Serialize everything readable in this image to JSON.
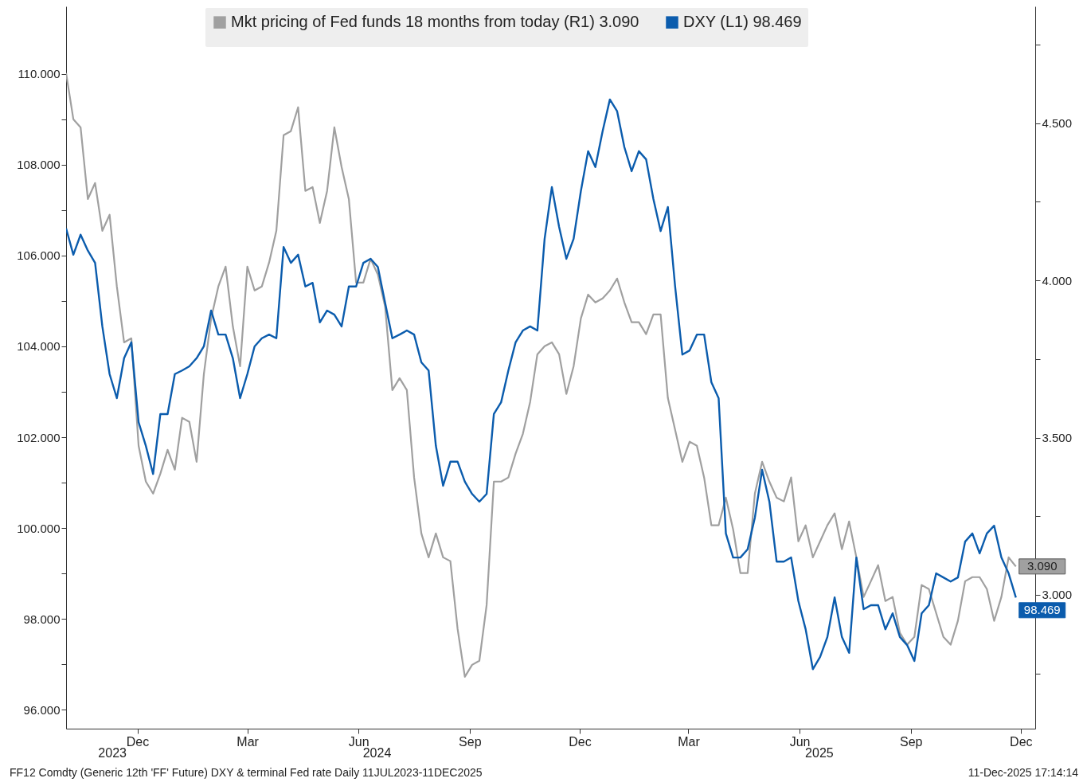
{
  "chart_data": {
    "type": "line",
    "x": [
      "2023-10-17",
      "2023-10-23",
      "2023-10-29",
      "2023-11-04",
      "2023-11-10",
      "2023-11-16",
      "2023-11-22",
      "2023-11-28",
      "2023-12-04",
      "2023-12-10",
      "2023-12-16",
      "2023-12-22",
      "2023-12-28",
      "2024-01-03",
      "2024-01-09",
      "2024-01-15",
      "2024-01-21",
      "2024-01-27",
      "2024-02-02",
      "2024-02-08",
      "2024-02-14",
      "2024-02-20",
      "2024-02-26",
      "2024-03-03",
      "2024-03-09",
      "2024-03-15",
      "2024-03-21",
      "2024-03-27",
      "2024-04-02",
      "2024-04-08",
      "2024-04-14",
      "2024-04-20",
      "2024-04-26",
      "2024-05-02",
      "2024-05-08",
      "2024-05-14",
      "2024-05-20",
      "2024-05-26",
      "2024-06-01",
      "2024-06-07",
      "2024-06-13",
      "2024-06-19",
      "2024-06-25",
      "2024-07-01",
      "2024-07-07",
      "2024-07-13",
      "2024-07-19",
      "2024-07-25",
      "2024-07-31",
      "2024-08-06",
      "2024-08-12",
      "2024-08-18",
      "2024-08-24",
      "2024-08-30",
      "2024-09-05",
      "2024-09-11",
      "2024-09-17",
      "2024-09-23",
      "2024-09-29",
      "2024-10-05",
      "2024-10-11",
      "2024-10-17",
      "2024-10-23",
      "2024-10-29",
      "2024-11-04",
      "2024-11-10",
      "2024-11-16",
      "2024-11-22",
      "2024-11-28",
      "2024-12-04",
      "2024-12-10",
      "2024-12-16",
      "2024-12-22",
      "2024-12-28",
      "2025-01-03",
      "2025-01-09",
      "2025-01-15",
      "2025-01-21",
      "2025-01-27",
      "2025-02-02",
      "2025-02-08",
      "2025-02-14",
      "2025-02-20",
      "2025-02-26",
      "2025-03-04",
      "2025-03-10",
      "2025-03-16",
      "2025-03-22",
      "2025-03-28",
      "2025-04-03",
      "2025-04-09",
      "2025-04-15",
      "2025-04-21",
      "2025-04-27",
      "2025-05-03",
      "2025-05-09",
      "2025-05-15",
      "2025-05-21",
      "2025-05-27",
      "2025-06-02",
      "2025-06-08",
      "2025-06-14",
      "2025-06-20",
      "2025-06-26",
      "2025-07-02",
      "2025-07-08",
      "2025-07-14",
      "2025-07-20",
      "2025-07-26",
      "2025-08-01",
      "2025-08-07",
      "2025-08-13",
      "2025-08-19",
      "2025-08-25",
      "2025-08-31",
      "2025-09-06",
      "2025-09-12",
      "2025-09-18",
      "2025-09-24",
      "2025-09-30",
      "2025-10-06",
      "2025-10-12",
      "2025-10-18",
      "2025-10-24",
      "2025-10-30",
      "2025-11-05",
      "2025-11-11",
      "2025-11-17",
      "2025-11-23",
      "2025-11-29",
      "2025-12-05",
      "2025-12-11"
    ],
    "series": [
      {
        "name": "Mkt pricing of Fed funds 18 months from today (R1) 3.090",
        "color": "#a0a0a0",
        "axis": "y2",
        "values": [
          4.66,
          4.513,
          4.487,
          4.259,
          4.31,
          4.158,
          4.209,
          3.981,
          3.803,
          3.816,
          3.474,
          3.36,
          3.322,
          3.385,
          3.461,
          3.398,
          3.563,
          3.55,
          3.423,
          3.702,
          3.879,
          3.981,
          4.044,
          3.854,
          3.727,
          4.044,
          3.968,
          3.981,
          4.057,
          4.158,
          4.462,
          4.475,
          4.551,
          4.285,
          4.297,
          4.183,
          4.285,
          4.487,
          4.361,
          4.259,
          3.993,
          3.993,
          4.069,
          4.019,
          3.917,
          3.651,
          3.689,
          3.651,
          3.373,
          3.195,
          3.119,
          3.195,
          3.119,
          3.107,
          2.891,
          2.739,
          2.777,
          2.79,
          2.967,
          3.36,
          3.36,
          3.373,
          3.449,
          3.512,
          3.613,
          3.765,
          3.791,
          3.803,
          3.765,
          3.639,
          3.727,
          3.879,
          3.955,
          3.93,
          3.943,
          3.968,
          4.006,
          3.93,
          3.867,
          3.867,
          3.829,
          3.892,
          3.892,
          3.626,
          3.525,
          3.423,
          3.487,
          3.474,
          3.373,
          3.221,
          3.221,
          3.309,
          3.208,
          3.069,
          3.069,
          3.322,
          3.423,
          3.36,
          3.309,
          3.297,
          3.373,
          3.17,
          3.221,
          3.119,
          3.17,
          3.221,
          3.259,
          3.145,
          3.233,
          3.119,
          2.993,
          3.043,
          3.094,
          2.98,
          2.993,
          2.879,
          2.841,
          2.866,
          3.031,
          3.018,
          2.942,
          2.866,
          2.841,
          2.917,
          3.043,
          3.056,
          3.056,
          3.018,
          2.917,
          2.993,
          3.119,
          3.09
        ],
        "value_labels": [
          null,
          null,
          null,
          null,
          null,
          null,
          null,
          null,
          null,
          null,
          null,
          null,
          null,
          null,
          null,
          null,
          null,
          null,
          null,
          null,
          null,
          null,
          null,
          null,
          null,
          null,
          null,
          null,
          null,
          null,
          null,
          null,
          null,
          null,
          null,
          null,
          null,
          null,
          null,
          null,
          null,
          null,
          null,
          null,
          null,
          null,
          null,
          null,
          null,
          null,
          null,
          null,
          null,
          null,
          null,
          null,
          null,
          null,
          null,
          null,
          null,
          null,
          null,
          null,
          null,
          null,
          null,
          null,
          null,
          null,
          null,
          null,
          null,
          null,
          null,
          null,
          null,
          null,
          null,
          null,
          null,
          null,
          null,
          null,
          null,
          null,
          null,
          null,
          null,
          null,
          null,
          null,
          null,
          null,
          null,
          null,
          null,
          null,
          null,
          null,
          null,
          null,
          null,
          null,
          null,
          null,
          null,
          null,
          null,
          null,
          null,
          null,
          null,
          null,
          null,
          null,
          null,
          null,
          null,
          null,
          null,
          null,
          null,
          null,
          null,
          null,
          null,
          null,
          null,
          null,
          null,
          "3.090"
        ]
      },
      {
        "name": "DXY (L1) 98.469",
        "color": "#0b5cad",
        "values": [
          106.6,
          106.02,
          106.46,
          106.11,
          105.84,
          104.44,
          103.39,
          102.86,
          103.74,
          104.09,
          102.33,
          101.81,
          101.19,
          102.51,
          102.51,
          103.39,
          103.47,
          103.56,
          103.74,
          104.0,
          104.79,
          104.26,
          104.26,
          103.74,
          102.86,
          103.39,
          104.0,
          104.18,
          104.26,
          104.18,
          106.19,
          105.84,
          106.02,
          105.32,
          105.4,
          104.53,
          104.79,
          104.7,
          104.44,
          105.32,
          105.32,
          105.84,
          105.93,
          105.75,
          104.96,
          104.18,
          104.26,
          104.35,
          104.26,
          103.65,
          103.47,
          101.81,
          100.93,
          101.46,
          101.46,
          101.02,
          100.75,
          100.58,
          100.75,
          102.51,
          102.77,
          103.47,
          104.09,
          104.35,
          104.44,
          104.35,
          106.37,
          107.51,
          106.63,
          105.93,
          106.37,
          107.42,
          108.3,
          107.95,
          108.74,
          109.44,
          109.18,
          108.39,
          107.86,
          108.3,
          108.12,
          107.25,
          106.54,
          107.07,
          105.32,
          103.82,
          103.91,
          104.26,
          104.26,
          103.21,
          102.86,
          99.88,
          99.35,
          99.35,
          99.53,
          100.23,
          101.28,
          100.58,
          99.26,
          99.26,
          99.35,
          98.39,
          97.77,
          96.89,
          97.16,
          97.6,
          98.47,
          97.6,
          97.25,
          99.35,
          98.21,
          98.3,
          98.3,
          97.77,
          98.12,
          97.6,
          97.42,
          97.07,
          98.12,
          98.3,
          99.0,
          98.91,
          98.82,
          98.91,
          99.7,
          99.88,
          99.44,
          99.88,
          100.05,
          99.35,
          99.0,
          98.469
        ],
        "value_labels": [
          null,
          null,
          null,
          null,
          null,
          null,
          null,
          null,
          null,
          null,
          null,
          null,
          null,
          null,
          null,
          null,
          null,
          null,
          null,
          null,
          null,
          null,
          null,
          null,
          null,
          null,
          null,
          null,
          null,
          null,
          null,
          null,
          null,
          null,
          null,
          null,
          null,
          null,
          null,
          null,
          null,
          null,
          null,
          null,
          null,
          null,
          null,
          null,
          null,
          null,
          null,
          null,
          null,
          null,
          null,
          null,
          null,
          null,
          null,
          null,
          null,
          null,
          null,
          null,
          null,
          null,
          null,
          null,
          null,
          null,
          null,
          null,
          null,
          null,
          null,
          null,
          null,
          null,
          null,
          null,
          null,
          null,
          null,
          null,
          null,
          null,
          null,
          null,
          null,
          null,
          null,
          null,
          null,
          null,
          null,
          null,
          null,
          null,
          null,
          null,
          null,
          null,
          null,
          null,
          null,
          null,
          null,
          null,
          null,
          null,
          null,
          null,
          null,
          null,
          null,
          null,
          null,
          null,
          null,
          null,
          null,
          null,
          null,
          null,
          null,
          null,
          null,
          null,
          null,
          null,
          null,
          "98.469"
        ]
      }
    ],
    "xlim": [
      "2023-10-17",
      "2025-12-27"
    ],
    "xticks": [
      {
        "value": "2023-12-15",
        "label": "Dec"
      },
      {
        "value": "2024-03-15",
        "label": "Mar"
      },
      {
        "value": "2024-06-15",
        "label": "Jun"
      },
      {
        "value": "2024-09-15",
        "label": "Sep"
      },
      {
        "value": "2024-12-15",
        "label": "Dec"
      },
      {
        "value": "2025-03-15",
        "label": "Mar"
      },
      {
        "value": "2025-06-15",
        "label": "Jun"
      },
      {
        "value": "2025-09-15",
        "label": "Sep"
      },
      {
        "value": "2025-12-15",
        "label": "Dec"
      }
    ],
    "x2lim": [
      "2023-10-17",
      "2025-12-27"
    ],
    "x2ticks": [
      {
        "value": "2023-11-24",
        "label": "2023"
      },
      {
        "value": "2024-06-30",
        "label": "2024"
      },
      {
        "value": "2025-07-01",
        "label": "2025"
      }
    ],
    "ylim": [
      95.58,
      111.49
    ],
    "yticks": [
      {
        "value": 96,
        "label": "96.000"
      },
      {
        "value": 97,
        "label": null
      },
      {
        "value": 98,
        "label": "98.000"
      },
      {
        "value": 99,
        "label": null
      },
      {
        "value": 100,
        "label": "100.000"
      },
      {
        "value": 101,
        "label": null
      },
      {
        "value": 102,
        "label": "102.000"
      },
      {
        "value": 103,
        "label": null
      },
      {
        "value": 104,
        "label": "104.000"
      },
      {
        "value": 105,
        "label": null
      },
      {
        "value": 106,
        "label": "106.000"
      },
      {
        "value": 107,
        "label": null
      },
      {
        "value": 108,
        "label": "108.000"
      },
      {
        "value": 109,
        "label": null
      },
      {
        "value": 110,
        "label": "110.000"
      }
    ],
    "y2lim": [
      2.574,
      4.872
    ],
    "y2ticks": [
      {
        "value": 2.75,
        "label": null
      },
      {
        "value": 3,
        "label": "3.000"
      },
      {
        "value": 3.25,
        "label": null
      },
      {
        "value": 3.5,
        "label": "3.500"
      },
      {
        "value": 3.75,
        "label": null
      },
      {
        "value": 4,
        "label": "4.000"
      },
      {
        "value": 4.25,
        "label": null
      },
      {
        "value": 4.5,
        "label": "4.500"
      },
      {
        "value": 4.75,
        "label": null
      }
    ],
    "legend": "top",
    "grid": false,
    "marker": "none",
    "line_style": "solid",
    "annotations": [
      "FF12 Comdty (Generic 12th 'FF' Future) DXY & terminal Fed rate Daily 11JUL2023-11DEC2025",
      "11-Dec-2025 17:14:14"
    ]
  }
}
